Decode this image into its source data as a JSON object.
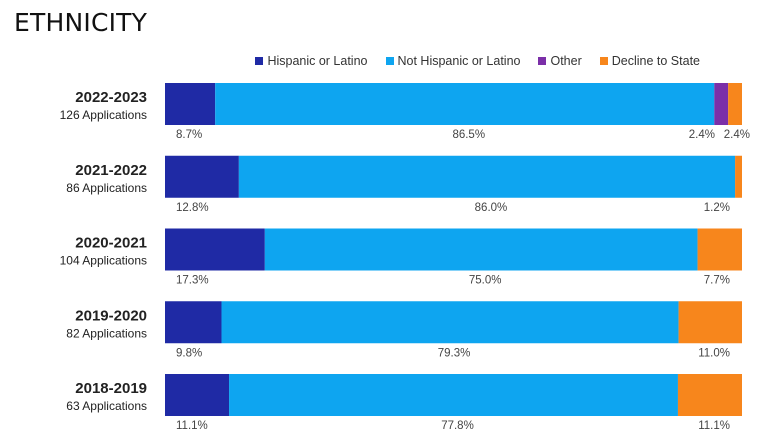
{
  "title": "ETHNICITY",
  "colors": {
    "Hispanic or Latino": "#1f2aa5",
    "Not Hispanic or Latino": "#0ea5f0",
    "Other": "#7b2fa8",
    "Decline to State": "#f7861c"
  },
  "chart_data": {
    "type": "bar",
    "orientation": "horizontal",
    "stacked": "percent",
    "title": "ETHNICITY",
    "legend_position": "top-right",
    "categories": [
      "2022-2023",
      "2021-2022",
      "2020-2021",
      "2019-2020",
      "2018-2019"
    ],
    "category_sublabels": [
      "126 Applications",
      "86 Applications",
      "104 Applications",
      "82 Applications",
      "63 Applications"
    ],
    "series": [
      {
        "name": "Hispanic or Latino",
        "values": [
          8.7,
          12.8,
          17.3,
          9.8,
          11.1
        ]
      },
      {
        "name": "Not Hispanic or Latino",
        "values": [
          86.5,
          86.0,
          75.0,
          79.3,
          77.8
        ]
      },
      {
        "name": "Other",
        "values": [
          2.4,
          0,
          0,
          0,
          0
        ]
      },
      {
        "name": "Decline to State",
        "values": [
          2.4,
          1.2,
          7.7,
          11.0,
          11.1
        ]
      }
    ],
    "data_labels": [
      [
        "8.7%",
        "86.5%",
        "2.4%",
        "2.4%"
      ],
      [
        "12.8%",
        "86.0%",
        "",
        "1.2%"
      ],
      [
        "17.3%",
        "75.0%",
        "",
        "7.7%"
      ],
      [
        "9.8%",
        "79.3%",
        "",
        "11.0%"
      ],
      [
        "11.1%",
        "77.8%",
        "",
        "11.1%"
      ]
    ],
    "grid": false
  }
}
